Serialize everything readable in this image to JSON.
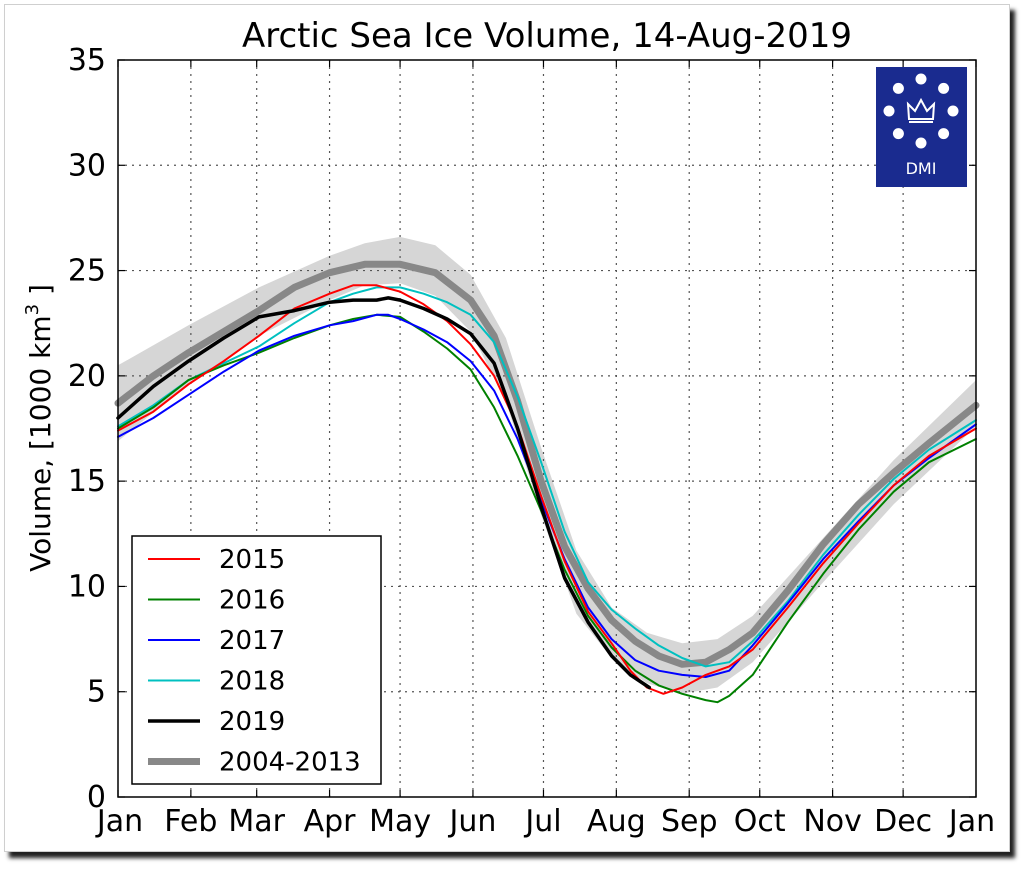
{
  "chart_data": {
    "type": "line",
    "title": "Arctic Sea Ice Volume, 14-Aug-2019",
    "ylabel": "Volume, [1000 km³ ]",
    "xlabel": "",
    "ylim": [
      0,
      35
    ],
    "xlim": [
      0,
      365
    ],
    "grid": true,
    "legend_position": "bottom-left",
    "x_ticks": [
      {
        "label": "Jan",
        "day": 0
      },
      {
        "label": "Feb",
        "day": 31
      },
      {
        "label": "Mar",
        "day": 59
      },
      {
        "label": "Apr",
        "day": 90
      },
      {
        "label": "May",
        "day": 120
      },
      {
        "label": "Jun",
        "day": 151
      },
      {
        "label": "Jul",
        "day": 181
      },
      {
        "label": "Aug",
        "day": 212
      },
      {
        "label": "Sep",
        "day": 243
      },
      {
        "label": "Oct",
        "day": 273
      },
      {
        "label": "Nov",
        "day": 304
      },
      {
        "label": "Dec",
        "day": 334
      },
      {
        "label": "Jan",
        "day": 365
      }
    ],
    "y_ticks": [
      0,
      5,
      10,
      15,
      20,
      25,
      30,
      35
    ],
    "band": {
      "name": "",
      "color": "#d6d6d6",
      "x": [
        0,
        30,
        60,
        90,
        105,
        120,
        135,
        150,
        165,
        180,
        195,
        210,
        225,
        240,
        255,
        270,
        300,
        330,
        365
      ],
      "upper": [
        20.5,
        22.4,
        24.2,
        25.7,
        26.3,
        26.6,
        26.2,
        24.8,
        21.8,
        16.6,
        11.7,
        9.0,
        7.8,
        7.3,
        7.5,
        8.6,
        12.3,
        16.0,
        19.8
      ],
      "lower": [
        16.9,
        19.6,
        21.9,
        23.6,
        24.3,
        24.4,
        23.8,
        22.1,
        18.8,
        13.4,
        8.7,
        6.6,
        5.4,
        4.9,
        5.2,
        6.4,
        10.2,
        13.9,
        17.6
      ]
    },
    "series": [
      {
        "name": "2015",
        "color": "#ff0000",
        "width": 2,
        "x": [
          0,
          15,
          30,
          45,
          60,
          75,
          90,
          100,
          110,
          120,
          130,
          140,
          150,
          160,
          170,
          180,
          190,
          200,
          210,
          218,
          225,
          232,
          240,
          250,
          260,
          270,
          285,
          300,
          315,
          330,
          345,
          365
        ],
        "y": [
          17.4,
          18.3,
          19.6,
          20.7,
          21.9,
          23.2,
          23.9,
          24.3,
          24.3,
          24.0,
          23.4,
          22.6,
          21.5,
          20.0,
          17.6,
          14.3,
          11.2,
          8.8,
          7.3,
          6.0,
          5.2,
          4.9,
          5.2,
          5.8,
          6.2,
          7.0,
          9.0,
          11.1,
          13.0,
          14.8,
          16.2,
          17.5
        ]
      },
      {
        "name": "2016",
        "color": "#008000",
        "width": 2,
        "x": [
          0,
          15,
          30,
          45,
          60,
          75,
          90,
          100,
          110,
          120,
          130,
          140,
          150,
          160,
          170,
          180,
          190,
          200,
          210,
          220,
          230,
          240,
          250,
          255,
          260,
          270,
          285,
          300,
          315,
          330,
          345,
          365
        ],
        "y": [
          17.5,
          18.5,
          19.8,
          20.5,
          21.1,
          21.8,
          22.4,
          22.7,
          22.9,
          22.8,
          22.1,
          21.3,
          20.3,
          18.5,
          16.2,
          13.6,
          10.8,
          8.6,
          7.1,
          6.0,
          5.3,
          4.9,
          4.6,
          4.5,
          4.8,
          5.8,
          8.3,
          10.6,
          12.7,
          14.5,
          15.9,
          17.0
        ]
      },
      {
        "name": "2017",
        "color": "#0000ff",
        "width": 2,
        "x": [
          0,
          15,
          30,
          45,
          60,
          75,
          90,
          100,
          110,
          115,
          120,
          130,
          140,
          150,
          160,
          170,
          180,
          190,
          200,
          210,
          220,
          230,
          240,
          250,
          260,
          270,
          285,
          300,
          315,
          330,
          345,
          365
        ],
        "y": [
          17.1,
          18.0,
          19.1,
          20.2,
          21.2,
          21.9,
          22.4,
          22.6,
          22.9,
          22.9,
          22.7,
          22.2,
          21.6,
          20.7,
          19.3,
          17.0,
          14.1,
          11.3,
          9.0,
          7.5,
          6.5,
          6.0,
          5.8,
          5.7,
          6.0,
          7.2,
          9.2,
          11.3,
          13.1,
          14.8,
          16.1,
          17.7
        ]
      },
      {
        "name": "2018",
        "color": "#00c0c0",
        "width": 2,
        "x": [
          0,
          15,
          30,
          45,
          60,
          75,
          90,
          100,
          110,
          120,
          130,
          140,
          150,
          160,
          170,
          180,
          190,
          200,
          210,
          220,
          230,
          240,
          250,
          260,
          270,
          285,
          300,
          315,
          330,
          345,
          365
        ],
        "y": [
          17.6,
          18.6,
          19.8,
          20.6,
          21.4,
          22.5,
          23.5,
          23.9,
          24.2,
          24.2,
          23.9,
          23.5,
          22.9,
          21.6,
          19.0,
          15.9,
          12.6,
          10.2,
          8.9,
          8.0,
          7.2,
          6.6,
          6.2,
          6.4,
          7.4,
          9.3,
          11.5,
          13.4,
          15.1,
          16.5,
          17.9
        ]
      },
      {
        "name": "2019",
        "color": "#000000",
        "width": 3.5,
        "x": [
          0,
          15,
          30,
          45,
          60,
          75,
          90,
          100,
          110,
          115,
          120,
          130,
          140,
          150,
          160,
          170,
          180,
          190,
          200,
          210,
          218,
          226
        ],
        "y": [
          18.0,
          19.5,
          20.7,
          21.8,
          22.8,
          23.1,
          23.5,
          23.6,
          23.6,
          23.7,
          23.6,
          23.2,
          22.7,
          22.0,
          20.6,
          17.5,
          13.8,
          10.4,
          8.3,
          6.7,
          5.8,
          5.2
        ]
      },
      {
        "name": "2004-2013",
        "color": "#888888",
        "width": 7,
        "x": [
          0,
          15,
          30,
          45,
          60,
          75,
          90,
          105,
          120,
          135,
          150,
          160,
          170,
          180,
          190,
          200,
          210,
          220,
          230,
          240,
          250,
          260,
          270,
          285,
          300,
          315,
          330,
          345,
          365
        ],
        "y": [
          18.7,
          20.0,
          21.1,
          22.1,
          23.1,
          24.2,
          24.9,
          25.3,
          25.3,
          24.9,
          23.6,
          21.9,
          18.8,
          15.0,
          11.9,
          9.9,
          8.4,
          7.4,
          6.7,
          6.3,
          6.4,
          7.0,
          7.8,
          9.8,
          12.0,
          13.9,
          15.4,
          16.8,
          18.6
        ]
      }
    ]
  },
  "logo": {
    "text": "DMI",
    "background": "#1a2b8f"
  }
}
